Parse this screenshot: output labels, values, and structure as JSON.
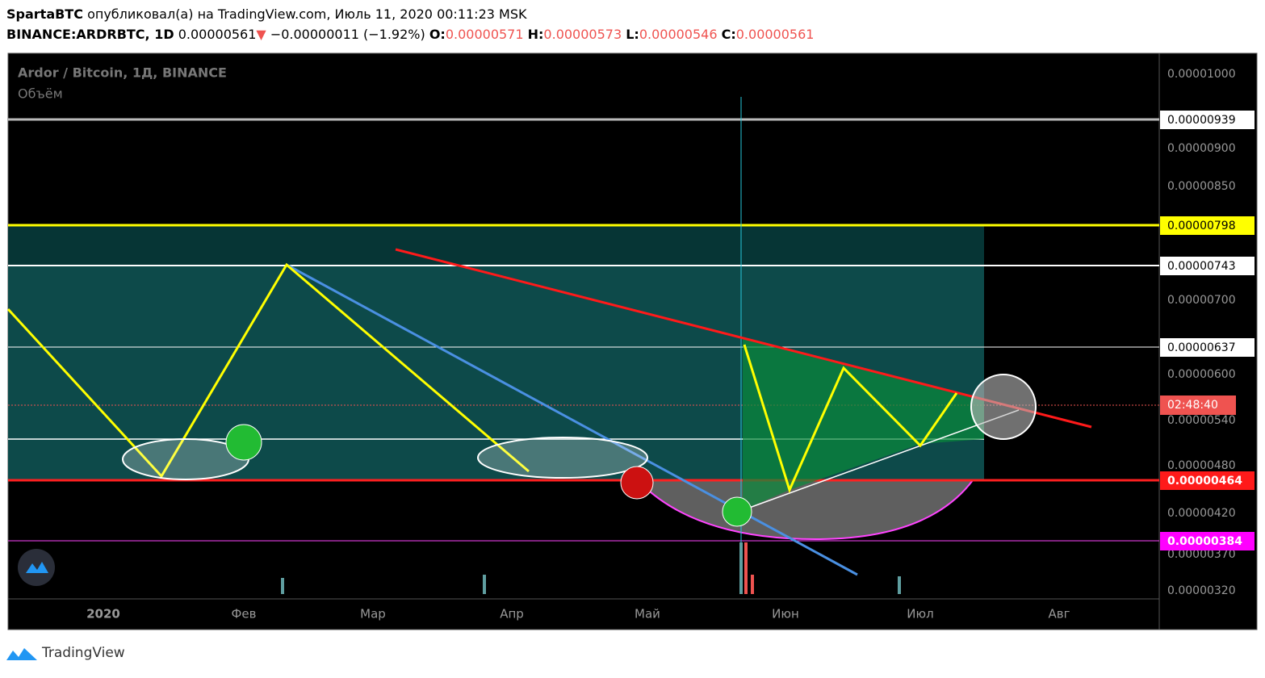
{
  "header": {
    "author": "SpartaBTC",
    "published": "опубликовал(а) на TradingView.com, Июль 11, 2020 00:11:23 MSK"
  },
  "ticker": {
    "symbol": "BINANCE:ARDRBTC, 1D",
    "price": "0.00000561",
    "change": "−0.00000011 (−1.92%)",
    "open_label": "O:",
    "open": "0.00000571",
    "high_label": "H:",
    "high": "0.00000573",
    "low_label": "L:",
    "low": "0.00000546",
    "close_label": "C:",
    "close": "0.00000561"
  },
  "legend": {
    "title": "Ardor / Bitcoin, 1Д, BINANCE",
    "volume": "Объём"
  },
  "price_axis": [
    "0.00001000",
    "0.00000900",
    "0.00000850",
    "0.00000700",
    "0.00000600",
    "0.00000540",
    "0.00000480",
    "0.00000420",
    "0.00000370",
    "0.00000320"
  ],
  "levels": [
    "0.00000939",
    "0.00000798",
    "0.00000743",
    "0.00000637",
    "02:48:40",
    "0.00000464",
    "0.00000384"
  ],
  "time_axis": [
    "2020",
    "Фев",
    "Мар",
    "Апр",
    "Май",
    "Июн",
    "Июл",
    "Авг"
  ],
  "footer": "TradingView"
}
